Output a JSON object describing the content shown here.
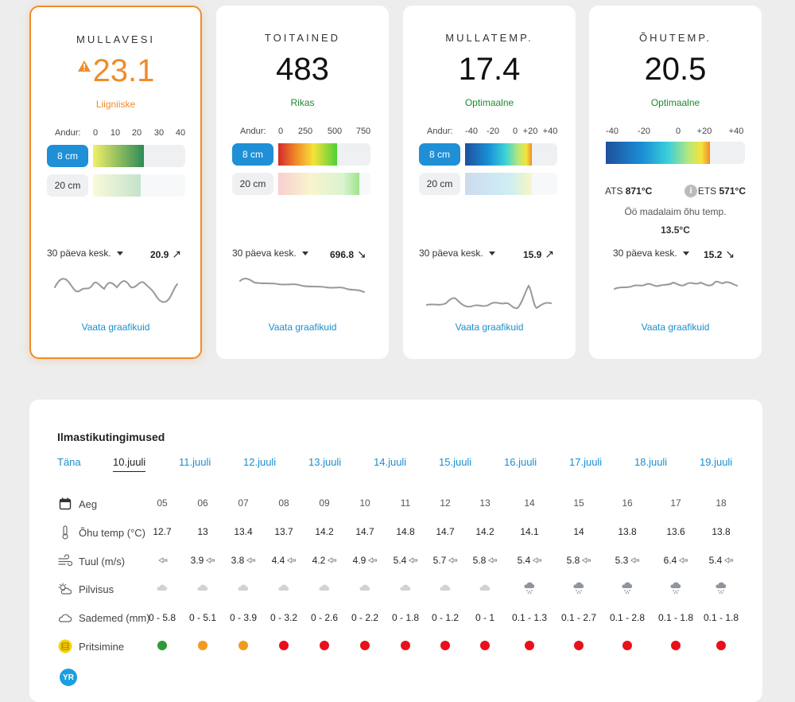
{
  "cards": [
    {
      "title": "MULLAVESI",
      "value": "23.1",
      "status": "Liigniiske",
      "variant": "warn",
      "scale_label": "Andur:",
      "scale": [
        "0",
        "10",
        "20",
        "30",
        "40"
      ],
      "depths": [
        {
          "label": "8 cm",
          "fill": 0.55
        },
        {
          "label": "20 cm",
          "fill": 0.52
        }
      ],
      "avg_label": "30 päeva kesk.",
      "avg_value": "20.9",
      "trend": "↗",
      "link": "Vaata graafikuid"
    },
    {
      "title": "TOITAINED",
      "value": "483",
      "status": "Rikas",
      "variant": "normal",
      "scale_label": "Andur:",
      "scale": [
        "0",
        "250",
        "500",
        "750"
      ],
      "depths": [
        {
          "label": "8 cm",
          "fill": 0.64
        },
        {
          "label": "20 cm",
          "fill": 0.88
        }
      ],
      "avg_label": "30 päeva kesk.",
      "avg_value": "696.8",
      "trend": "↘",
      "link": "Vaata graafikuid"
    },
    {
      "title": "MULLATEMP.",
      "value": "17.4",
      "status": "Optimaalne",
      "variant": "normal",
      "scale_label": "Andur:",
      "scale": [
        "-40",
        "-20",
        "0",
        "+20",
        "+40"
      ],
      "depths": [
        {
          "label": "8 cm",
          "fill": 0.72
        },
        {
          "label": "20 cm",
          "fill": 0.72
        }
      ],
      "avg_label": "30 päeva kesk.",
      "avg_value": "15.9",
      "trend": "↗",
      "link": "Vaata graafikuid"
    },
    {
      "title": "ÕHUTEMP.",
      "value": "20.5",
      "status": "Optimaalne",
      "variant": "normal",
      "scale": [
        "-40",
        "-20",
        "0",
        "+20",
        "+40"
      ],
      "bar_fill": 0.75,
      "ats_label": "ATS",
      "ats_value": "871°C",
      "ets_label": "ETS",
      "ets_value": "571°C",
      "night_label": "Öö madalaim õhu temp.",
      "night_value": "13.5°C",
      "avg_label": "30 päeva kesk.",
      "avg_value": "15.2",
      "trend": "↘",
      "link": "Vaata graafikuid"
    }
  ],
  "weather": {
    "title": "Ilmastikutingimused",
    "days": [
      "Täna",
      "10.juuli",
      "11.juuli",
      "12.juuli",
      "13.juuli",
      "14.juuli",
      "15.juuli",
      "16.juuli",
      "17.juuli",
      "18.juuli",
      "19.juuli"
    ],
    "active_day": 1,
    "row_labels": {
      "time": "Aeg",
      "temp": "Õhu temp (°C)",
      "wind": "Tuul (m/s)",
      "cloud": "Pilvisus",
      "precip": "Sademed (mm)",
      "spray": "Pritsimine"
    },
    "hours": [
      "05",
      "06",
      "07",
      "08",
      "09",
      "10",
      "11",
      "12",
      "13",
      "14",
      "15",
      "16",
      "17",
      "18"
    ],
    "temps": [
      "12.7",
      "13",
      "13.4",
      "13.7",
      "14.2",
      "14.7",
      "14.8",
      "14.7",
      "14.2",
      "14.1",
      "14",
      "13.8",
      "13.6",
      "13.8"
    ],
    "winds": [
      "",
      "3.9",
      "3.8",
      "4.4",
      "4.2",
      "4.9",
      "5.4",
      "5.7",
      "5.8",
      "5.4",
      "5.8",
      "5.3",
      "6.4",
      "5.4"
    ],
    "cloud_icons": [
      "cloud-icon",
      "cloud-icon",
      "cloud-icon",
      "cloud-icon",
      "cloud-icon",
      "cloud-icon",
      "cloud-icon",
      "cloud-icon",
      "cloud-icon",
      "snow-cloud-icon",
      "snow-cloud-icon",
      "snow-cloud-icon",
      "snow-cloud-icon",
      "snow-cloud-icon"
    ],
    "precip": [
      "0 - 5.8",
      "0 - 5.1",
      "0 - 3.9",
      "0 - 3.2",
      "0 - 2.6",
      "0 - 2.2",
      "0 - 1.8",
      "0 - 1.2",
      "0 - 1",
      "0.1 - 1.3",
      "0.1 - 2.7",
      "0.1 - 2.8",
      "0.1 - 1.8",
      "0.1 - 1.8"
    ],
    "spray": [
      "green",
      "orange",
      "orange",
      "red",
      "red",
      "red",
      "red",
      "red",
      "red",
      "red",
      "red",
      "red",
      "red",
      "red"
    ],
    "spray_colors": {
      "green": "#2e9a3a",
      "orange": "#f39a1e",
      "red": "#e8101a"
    },
    "yr_logo": "YR"
  },
  "colors": {
    "accent": "#1f8fd6",
    "warning": "#f08c2a",
    "ok": "#1e8a2e"
  }
}
